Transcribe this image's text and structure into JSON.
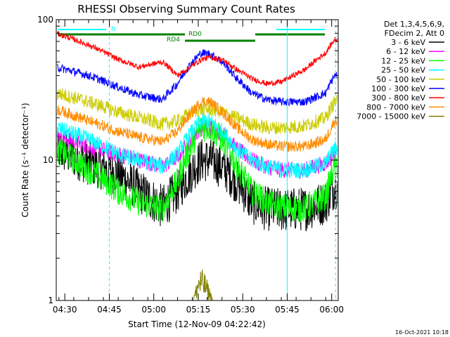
{
  "chart_data": {
    "type": "line",
    "title": "RHESSI Observing Summary Count Rates",
    "xlabel": "Start Time (12-Nov-09 04:22:42)",
    "ylabel": "Count Rate (s⁻¹ detector⁻¹)",
    "yscale": "log",
    "ylim": [
      1,
      100
    ],
    "y_ticks": [
      {
        "value": 1,
        "label": "1"
      },
      {
        "value": 10,
        "label": "10"
      },
      {
        "value": 100,
        "label": "100"
      }
    ],
    "x_range_minutes": [
      4.1,
      99.2
    ],
    "x_ticks": [
      {
        "minute": 7,
        "label": "04:30"
      },
      {
        "minute": 22,
        "label": "04:45"
      },
      {
        "minute": 37,
        "label": "05:00"
      },
      {
        "minute": 52,
        "label": "05:15"
      },
      {
        "minute": 67,
        "label": "05:30"
      },
      {
        "minute": 82,
        "label": "05:45"
      },
      {
        "minute": 97,
        "label": "06:00"
      }
    ],
    "legend_header": [
      "Det 1,3,4,5,6,9,",
      "FDecim 2, Att 0"
    ],
    "legend_position": "right",
    "series": [
      {
        "name": "3 - 6 keV",
        "color": "#000000",
        "x": [
          4,
          15,
          25,
          32,
          40,
          45,
          50,
          53,
          56,
          60,
          65,
          70,
          75,
          80,
          88,
          95,
          98
        ],
        "y": [
          12,
          9.5,
          8,
          6,
          4.6,
          6,
          8.5,
          10,
          10,
          9,
          7,
          5,
          4.5,
          4.4,
          4.5,
          5,
          6.5
        ]
      },
      {
        "name": "6 - 12 keV",
        "color": "#ff00ff",
        "x": [
          4,
          15,
          25,
          32,
          40,
          45,
          50,
          53,
          56,
          60,
          65,
          70,
          75,
          80,
          88,
          95,
          98
        ],
        "y": [
          15,
          12.5,
          11,
          10,
          9,
          10.5,
          14,
          17,
          17,
          15.5,
          12,
          10,
          9,
          8.5,
          8.5,
          9.5,
          11
        ]
      },
      {
        "name": "12 - 25 keV",
        "color": "#00ff00",
        "x": [
          4,
          15,
          25,
          32,
          40,
          45,
          50,
          53,
          56,
          60,
          65,
          70,
          75,
          80,
          88,
          95,
          98
        ],
        "y": [
          12,
          8.5,
          6,
          5,
          4.5,
          7,
          13,
          17,
          17,
          14,
          9,
          6,
          5,
          4.6,
          4.5,
          5.5,
          9
        ]
      },
      {
        "name": "25 - 50 keV",
        "color": "#00ffff",
        "x": [
          4,
          15,
          25,
          32,
          40,
          45,
          50,
          53,
          56,
          60,
          65,
          70,
          75,
          80,
          88,
          95,
          98
        ],
        "y": [
          17,
          14,
          11,
          10,
          9,
          11,
          16,
          19,
          19,
          16,
          12,
          10,
          9,
          8.5,
          8.5,
          9.5,
          12
        ]
      },
      {
        "name": "50 - 100 keV",
        "color": "#cccc00",
        "x": [
          4,
          15,
          25,
          32,
          40,
          45,
          50,
          53,
          56,
          60,
          65,
          70,
          75,
          80,
          88,
          95,
          98
        ],
        "y": [
          30,
          26,
          22,
          20,
          18,
          19,
          22,
          23,
          23,
          22,
          20,
          18,
          17,
          17,
          17.5,
          20,
          26
        ]
      },
      {
        "name": "100 - 300 keV",
        "color": "#0000ff",
        "x": [
          4,
          15,
          25,
          32,
          40,
          45,
          50,
          53,
          56,
          60,
          65,
          70,
          75,
          80,
          88,
          95,
          98
        ],
        "y": [
          46,
          40,
          33,
          29,
          27,
          35,
          50,
          58,
          57,
          50,
          38,
          30,
          27,
          26,
          26,
          30,
          40
        ]
      },
      {
        "name": "300 - 800 keV",
        "color": "#ff0000",
        "x": [
          4,
          15,
          25,
          32,
          40,
          45,
          50,
          53,
          56,
          60,
          65,
          70,
          75,
          80,
          88,
          95,
          98
        ],
        "y": [
          80,
          66,
          52,
          46,
          50,
          40,
          47,
          52,
          54,
          52,
          44,
          38,
          35,
          36,
          44,
          58,
          72
        ]
      },
      {
        "name": "800 - 7000 keV",
        "color": "#ff8c00",
        "x": [
          4,
          15,
          25,
          32,
          40,
          45,
          50,
          53,
          56,
          60,
          65,
          70,
          75,
          80,
          88,
          95,
          98
        ],
        "y": [
          23,
          19,
          16,
          14.5,
          13.5,
          16,
          22,
          26,
          26,
          22,
          17,
          14,
          13,
          12.5,
          12.5,
          14,
          19
        ]
      },
      {
        "name": "7000 - 15000 keV",
        "color": "#808000",
        "x": [
          4,
          50,
          51,
          52,
          53,
          54,
          55,
          56,
          57,
          98
        ],
        "y": [
          1,
          1,
          1.2,
          1.6,
          1.7,
          1.6,
          1.4,
          1.2,
          1,
          1
        ]
      }
    ],
    "annotations": [
      {
        "label": "N",
        "minute": 22,
        "color": "#00ffff"
      },
      {
        "label": "RD4",
        "minute": 42,
        "color": "#008000"
      },
      {
        "label": "RD0",
        "minute": 50,
        "color": "#008000"
      }
    ],
    "vertical_markers": [
      {
        "minute": 4.1,
        "style": "solid",
        "color": "#00ffff"
      },
      {
        "minute": 22,
        "style": "dashed",
        "color": "#00ffff"
      },
      {
        "minute": 82,
        "style": "solid",
        "color": "#00ffff"
      },
      {
        "minute": 98.3,
        "style": "dashed",
        "color": "#00ffff"
      }
    ],
    "footer": "16-Oct-2021 10:18"
  }
}
